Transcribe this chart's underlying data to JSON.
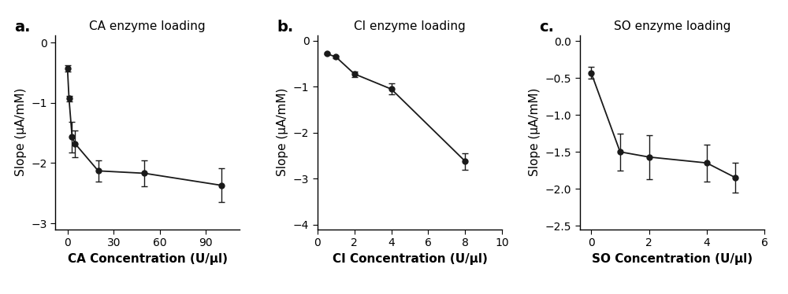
{
  "panel_a": {
    "title": "CA enzyme loading",
    "xlabel": "CA Concentration (U/μl)",
    "ylabel": "Slope (μA/mM)",
    "x": [
      0,
      1,
      3,
      5,
      20,
      50,
      100
    ],
    "y": [
      -0.43,
      -0.93,
      -1.57,
      -1.68,
      -2.13,
      -2.17,
      -2.37
    ],
    "yerr": [
      0.05,
      0.05,
      0.25,
      0.22,
      0.18,
      0.22,
      0.28
    ],
    "xlim": [
      -8,
      112
    ],
    "ylim": [
      -3.1,
      0.12
    ],
    "xticks": [
      0,
      30,
      60,
      90
    ],
    "yticks": [
      0,
      -1,
      -2,
      -3
    ]
  },
  "panel_b": {
    "title": "CI enzyme loading",
    "xlabel": "CI Concentration (U/μl)",
    "ylabel": "Slope (μA/mM)",
    "x": [
      0.5,
      1,
      2,
      4,
      8
    ],
    "y": [
      -0.28,
      -0.35,
      -0.72,
      -1.05,
      -2.62
    ],
    "yerr": [
      0.02,
      0.02,
      0.06,
      0.12,
      0.18
    ],
    "xlim": [
      0,
      10
    ],
    "ylim": [
      -4.1,
      0.12
    ],
    "xticks": [
      0,
      2,
      4,
      6,
      8,
      10
    ],
    "yticks": [
      0,
      -1,
      -2,
      -3,
      -4
    ]
  },
  "panel_c": {
    "title": "SO enzyme loading",
    "xlabel": "SO Concentration (U/μl)",
    "ylabel": "Slope (μA/mM)",
    "x": [
      0,
      1,
      2,
      4,
      5
    ],
    "y": [
      -0.43,
      -1.5,
      -1.57,
      -1.65,
      -1.85
    ],
    "yerr": [
      0.08,
      0.25,
      0.3,
      0.25,
      0.2
    ],
    "xlim": [
      -0.4,
      6
    ],
    "ylim": [
      -2.55,
      0.08
    ],
    "xticks": [
      0,
      2,
      4,
      6
    ],
    "yticks": [
      0.0,
      -0.5,
      -1.0,
      -1.5,
      -2.0,
      -2.5
    ]
  },
  "panel_labels": [
    "a.",
    "b.",
    "c."
  ],
  "line_color": "#1a1a1a",
  "marker": "o",
  "markersize": 5,
  "capsize": 3,
  "linewidth": 1.3,
  "background_color": "#ffffff",
  "label_fontsize": 11,
  "title_fontsize": 11,
  "tick_fontsize": 10,
  "panel_label_fontsize": 14
}
